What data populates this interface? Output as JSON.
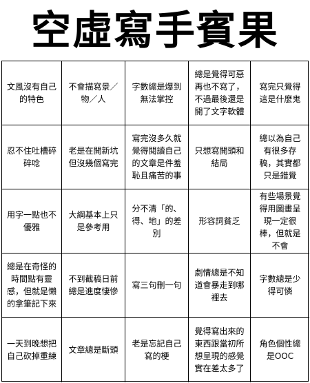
{
  "title": "空虛寫手賓果",
  "cells": [
    "文風沒有自己的特色",
    "不會描寫景／物／人",
    "字數總是爆到無法掌控",
    "總是覺得可惡再也不寫了，不過最後還是開了文字軟體",
    "寫完只覺得這是什麼鬼",
    "忍不住吐槽碎碎唸",
    "老是在開新坑但沒幾個寫完",
    "寫完沒多久就覺得閱讀自己的文章是件羞恥且痛苦的事",
    "只想寫開頭和結局",
    "總以為自己有很多存稿，其實都只是錯覺",
    "用字一點也不優雅",
    "大綱基本上只是參考用",
    "分不清「的、得、地」的差別",
    "形容詞貧乏",
    "有些場景覺得用圖畫呈現一定很棒，但就是不會",
    "總是在奇怪的時間點有靈感，但就是懶的拿筆記下來",
    "不到截稿日前總是進度悽慘",
    "寫三句刪一句",
    "劇情總是不知道會暴走到哪裡去",
    "字數總是少得可憐",
    "一天到晚想把自己砍掉重練",
    "文章總是斷頭",
    "老是忘記自己寫的梗",
    "覺得寫出來的東西跟當初所想呈現的感覺實在差太多了",
    "角色個性總是OOC"
  ]
}
